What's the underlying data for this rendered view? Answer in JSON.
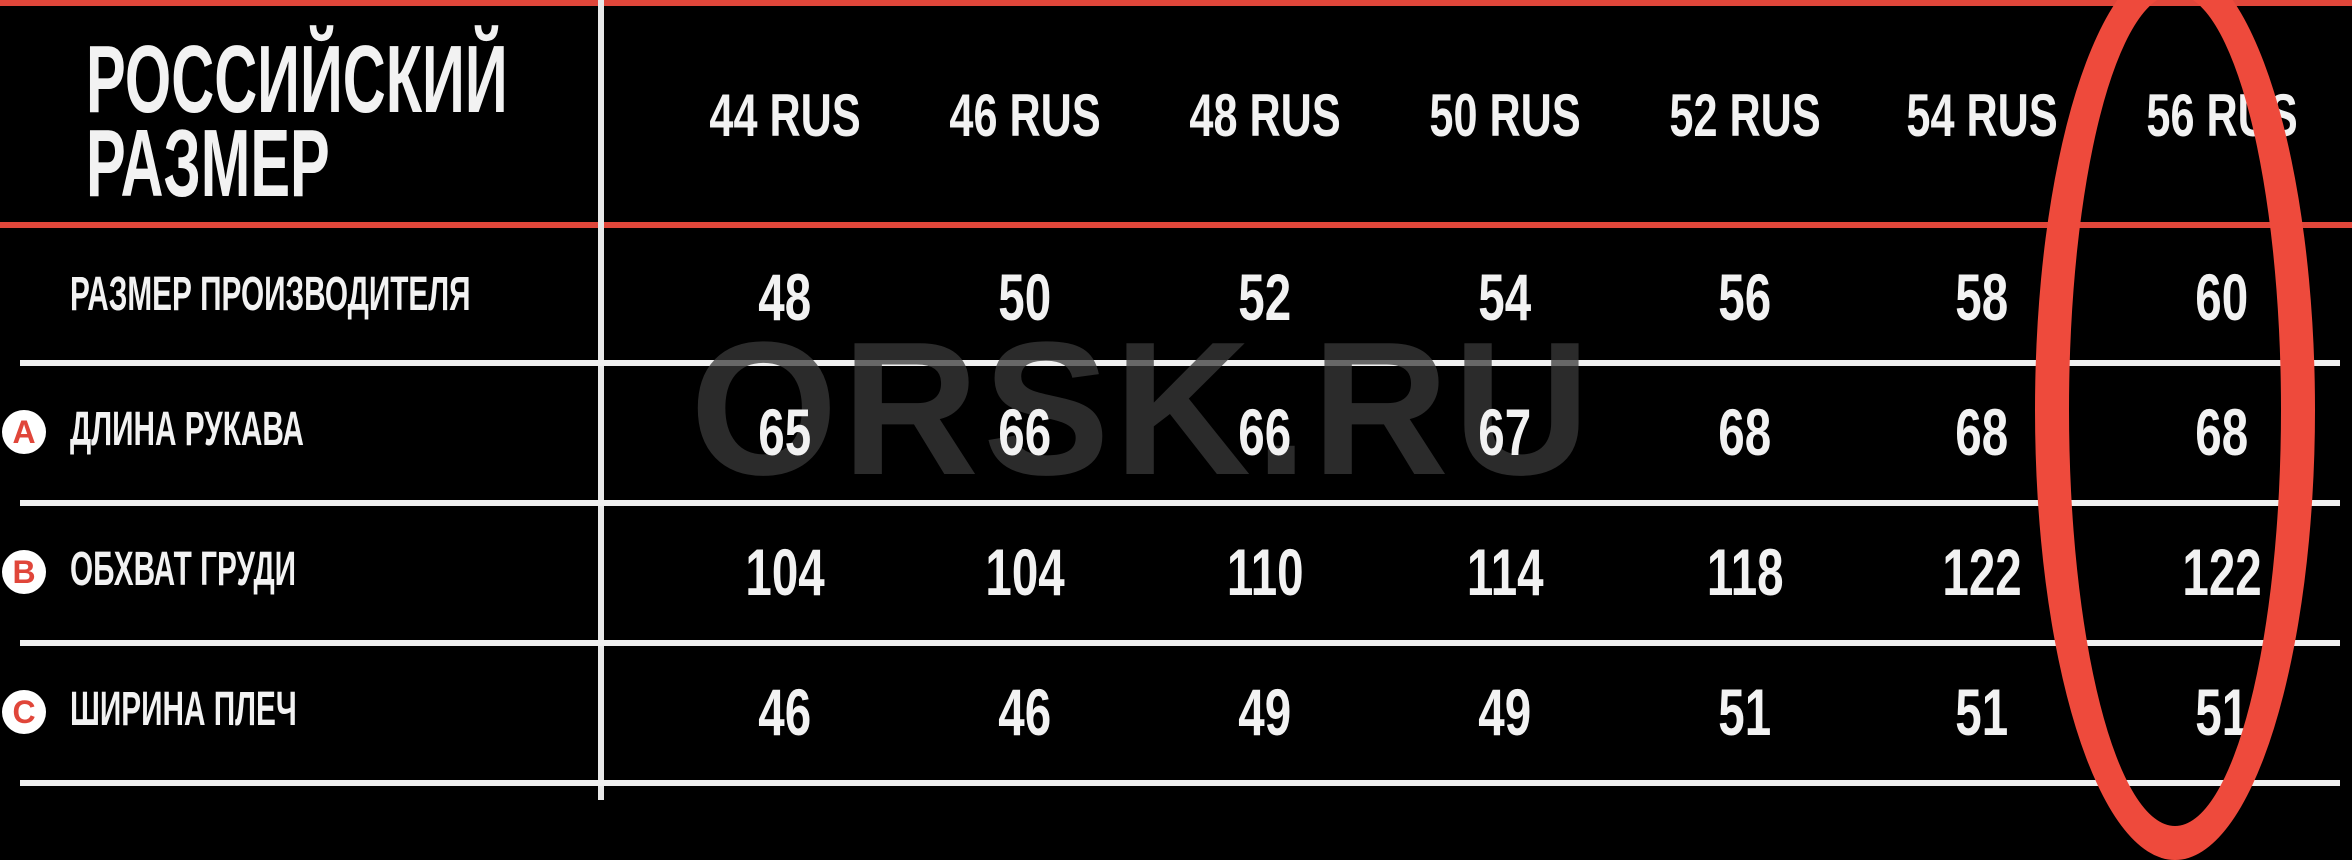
{
  "table": {
    "header_title_line1": "РОССИЙСКИЙ",
    "header_title_line2": "РАЗМЕР",
    "columns": [
      "44 RUS",
      "46 RUS",
      "48 RUS",
      "50 RUS",
      "52 RUS",
      "54 RUS",
      "56 RUS"
    ],
    "rows": [
      {
        "marker": "",
        "label": "РАЗМЕР ПРОИЗВОДИТЕЛЯ",
        "values": [
          "48",
          "50",
          "52",
          "54",
          "56",
          "58",
          "60"
        ]
      },
      {
        "marker": "A",
        "label": "ДЛИНА РУКАВА",
        "values": [
          "65",
          "66",
          "66",
          "67",
          "68",
          "68",
          "68"
        ]
      },
      {
        "marker": "B",
        "label": "ОБХВАТ ГРУДИ",
        "values": [
          "104",
          "104",
          "110",
          "114",
          "118",
          "122",
          "122"
        ]
      },
      {
        "marker": "C",
        "label": "ШИРИНА ПЛЕЧ",
        "values": [
          "46",
          "46",
          "49",
          "49",
          "51",
          "51",
          "51"
        ]
      }
    ],
    "highlighted_column": "56 RUS"
  },
  "watermark": "ORSK.RU",
  "colors": {
    "background": "#000000",
    "accent": "#e0463a",
    "highlight": "#ee4a3c",
    "text": "#f2f2f2"
  }
}
